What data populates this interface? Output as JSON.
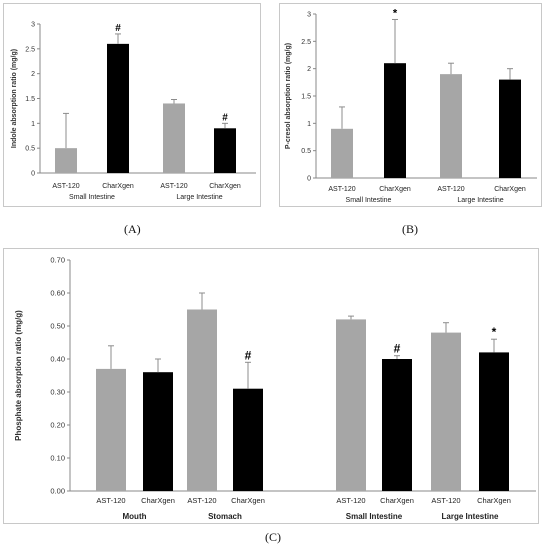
{
  "captions": {
    "a": "(A)",
    "b": "(B)",
    "c": "(C)"
  },
  "colors": {
    "gray": "#a6a6a6",
    "black": "#000000",
    "error_bar": "#8c8c8c",
    "axis": "#888888"
  },
  "chart_data": [
    {
      "id": "A",
      "type": "bar",
      "ylabel": "Indole absorption ratio (mg/g)",
      "ylim": [
        0,
        3
      ],
      "yticks": [
        0,
        0.5,
        1,
        1.5,
        2,
        2.5,
        3
      ],
      "ytick_labels": [
        "0",
        "0.5",
        "1",
        "1.5",
        "2",
        "2.5",
        "3"
      ],
      "bars": [
        {
          "label": "AST-120",
          "value": 0.5,
          "error": 0.7,
          "color": "gray",
          "marker": ""
        },
        {
          "label": "CharXgen",
          "value": 2.6,
          "error": 0.2,
          "color": "black",
          "marker": "#"
        },
        {
          "label": "AST-120",
          "value": 1.4,
          "error": 0.08,
          "color": "gray",
          "marker": ""
        },
        {
          "label": "CharXgen",
          "value": 0.9,
          "error": 0.1,
          "color": "black",
          "marker": "#"
        }
      ],
      "groups": [
        {
          "label": "Small Intestine",
          "bars": [
            0,
            1
          ]
        },
        {
          "label": "Large Intestine",
          "bars": [
            2,
            3
          ]
        }
      ]
    },
    {
      "id": "B",
      "type": "bar",
      "ylabel": "P-cresol absorption ratio (mg/g)",
      "ylim": [
        0,
        3
      ],
      "yticks": [
        0,
        0.5,
        1,
        1.5,
        2,
        2.5,
        3
      ],
      "ytick_labels": [
        "0",
        "0.5",
        "1",
        "1.5",
        "2",
        "2.5",
        "3"
      ],
      "bars": [
        {
          "label": "AST-120",
          "value": 0.9,
          "error": 0.4,
          "color": "gray",
          "marker": ""
        },
        {
          "label": "CharXgen",
          "value": 2.1,
          "error": 0.8,
          "color": "black",
          "marker": "*"
        },
        {
          "label": "AST-120",
          "value": 1.9,
          "error": 0.2,
          "color": "gray",
          "marker": ""
        },
        {
          "label": "CharXgen",
          "value": 1.8,
          "error": 0.2,
          "color": "black",
          "marker": ""
        }
      ],
      "groups": [
        {
          "label": "Small Intestine",
          "bars": [
            0,
            1
          ]
        },
        {
          "label": "Large Intestine",
          "bars": [
            2,
            3
          ]
        }
      ]
    },
    {
      "id": "C",
      "type": "bar",
      "ylabel": "Phosphate absorption ratio (mg/g)",
      "ylim": [
        0,
        0.7
      ],
      "yticks": [
        0,
        0.1,
        0.2,
        0.3,
        0.4,
        0.5,
        0.6,
        0.7
      ],
      "ytick_labels": [
        "0.00",
        "0.10",
        "0.20",
        "0.30",
        "0.40",
        "0.50",
        "0.60",
        "0.70"
      ],
      "bars": [
        {
          "label": "AST-120",
          "value": 0.37,
          "error": 0.07,
          "color": "gray",
          "marker": ""
        },
        {
          "label": "CharXgen",
          "value": 0.36,
          "error": 0.04,
          "color": "black",
          "marker": ""
        },
        {
          "label": "AST-120",
          "value": 0.55,
          "error": 0.05,
          "color": "gray",
          "marker": ""
        },
        {
          "label": "CharXgen",
          "value": 0.31,
          "error": 0.08,
          "color": "black",
          "marker": "#"
        },
        {
          "label": "AST-120",
          "value": 0.52,
          "error": 0.01,
          "color": "gray",
          "marker": ""
        },
        {
          "label": "CharXgen",
          "value": 0.4,
          "error": 0.01,
          "color": "black",
          "marker": "#"
        },
        {
          "label": "AST-120",
          "value": 0.48,
          "error": 0.03,
          "color": "gray",
          "marker": ""
        },
        {
          "label": "CharXgen",
          "value": 0.42,
          "error": 0.04,
          "color": "black",
          "marker": "*"
        }
      ],
      "groups": [
        {
          "label": "Mouth",
          "bars": [
            0,
            1
          ]
        },
        {
          "label": "Stomach",
          "bars": [
            2,
            3
          ]
        },
        {
          "label": "Small Intestine",
          "bars": [
            4,
            5
          ]
        },
        {
          "label": "Large Intestine",
          "bars": [
            6,
            7
          ]
        }
      ]
    }
  ]
}
